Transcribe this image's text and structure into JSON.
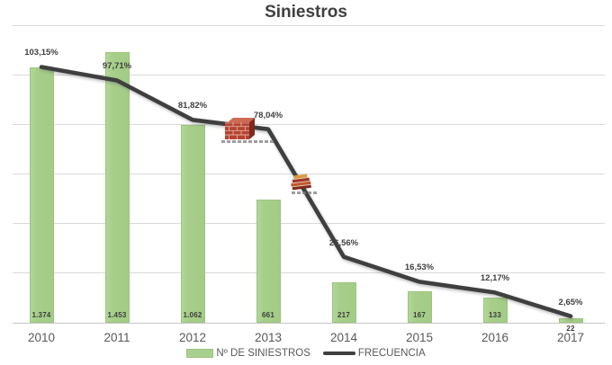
{
  "title": "Siniestros",
  "legend": {
    "items": [
      {
        "label": "Nº DE SINIESTROS",
        "swatch": "bar"
      },
      {
        "label": "FRECUENCIA",
        "swatch": "line"
      }
    ]
  },
  "chart_data": {
    "type": "bar",
    "subtype": "combo-bar-line",
    "title": "Siniestros",
    "categories": [
      "2010",
      "2011",
      "2012",
      "2013",
      "2014",
      "2015",
      "2016",
      "2017"
    ],
    "series": [
      {
        "name": "Nº DE SINIESTROS",
        "type": "bar",
        "color": "#a9d08e",
        "values": [
          1374,
          1453,
          1062,
          661,
          217,
          167,
          133,
          22
        ],
        "labels": [
          "1.374",
          "1.453",
          "1.062",
          "661",
          "217",
          "167",
          "133",
          "22"
        ],
        "axis": {
          "min": 0,
          "max": 1600,
          "ticks_visible": false
        }
      },
      {
        "name": "FRECUENCIA",
        "type": "line",
        "color": "#3f3f3f",
        "values": [
          103.15,
          97.71,
          81.82,
          78.04,
          26.56,
          16.53,
          12.17,
          2.65
        ],
        "labels": [
          "103,15%",
          "97,71%",
          "81,82%",
          "78,04%",
          "26,56%",
          "16,53%",
          "12,17%",
          "2,65%"
        ],
        "axis": {
          "min": 0,
          "max": 120,
          "ticks_visible": false
        }
      }
    ],
    "gridlines": {
      "orientation": "horizontal",
      "step": 20,
      "color": "#d9d9d9",
      "visible": true
    },
    "legend_position": "bottom",
    "annotations": [
      {
        "icon": "brick-wall",
        "anchor_category": "2013",
        "caption_legible": false
      },
      {
        "icon": "books-stack",
        "anchor_category": "2013/2014",
        "caption_legible": false
      }
    ]
  }
}
